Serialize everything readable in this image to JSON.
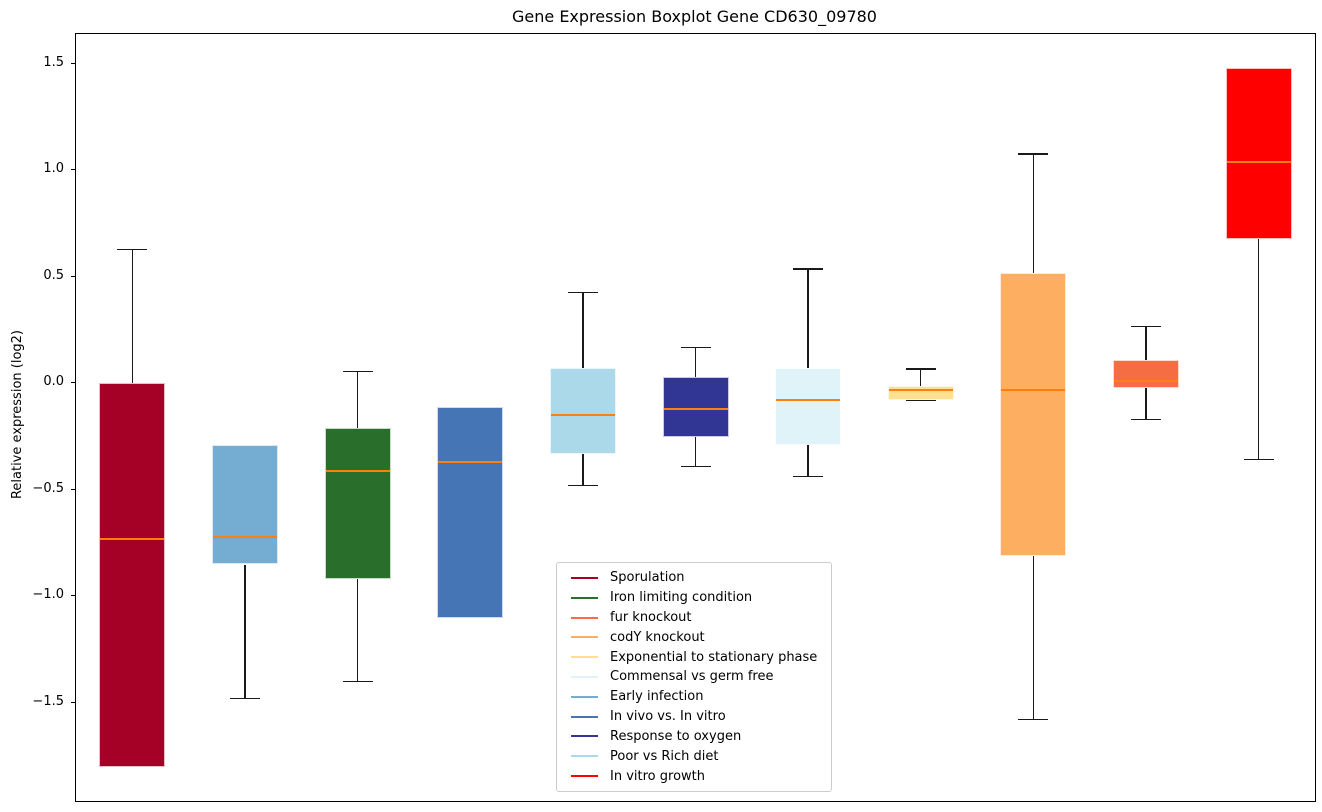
{
  "chart_data": {
    "type": "boxplot",
    "title": "Gene Expression Boxplot Gene CD630_09780",
    "xlabel": "",
    "ylabel": "Relative expression (log2)",
    "ylim": [
      -1.96,
      1.64
    ],
    "yticks": [
      1.5,
      1.0,
      0.5,
      0.0,
      -0.5,
      -1.0,
      -1.5
    ],
    "grid": false,
    "legend_position": "lower-center-right-inside",
    "median_color": "#ff7f0e",
    "whisker_color": "#1a1a1a",
    "series": [
      {
        "name": "Sporulation",
        "color": "#a50026",
        "whislo": -1.8,
        "q1": -1.8,
        "med": -0.73,
        "q3": 0.0,
        "whishi": 0.63
      },
      {
        "name": "Early infection",
        "color": "#74add1",
        "whislo": -1.48,
        "q1": -0.85,
        "med": -0.72,
        "q3": -0.29,
        "whishi": -0.29
      },
      {
        "name": "Iron limiting condition",
        "color": "#2a6e2c",
        "whislo": -1.4,
        "q1": -0.92,
        "med": -0.41,
        "q3": -0.21,
        "whishi": 0.06
      },
      {
        "name": "In vivo vs. In vitro",
        "color": "#4575b4",
        "whislo": -1.1,
        "q1": -1.1,
        "med": -0.37,
        "q3": -0.11,
        "whishi": -0.11
      },
      {
        "name": "Poor vs Rich diet",
        "color": "#abd9e9",
        "whislo": -0.48,
        "q1": -0.33,
        "med": -0.15,
        "q3": 0.07,
        "whishi": 0.43
      },
      {
        "name": "Response to oxygen",
        "color": "#313695",
        "whislo": -0.39,
        "q1": -0.25,
        "med": -0.12,
        "q3": 0.03,
        "whishi": 0.17
      },
      {
        "name": "Commensal vs germ free",
        "color": "#e0f3f8",
        "whislo": -0.44,
        "q1": -0.29,
        "med": -0.08,
        "q3": 0.07,
        "whishi": 0.54
      },
      {
        "name": "Exponential to stationary phase",
        "color": "#fee090",
        "whislo": -0.08,
        "q1": -0.08,
        "med": -0.03,
        "q3": -0.01,
        "whishi": 0.07
      },
      {
        "name": "codY knockout",
        "color": "#fdae61",
        "whislo": -1.58,
        "q1": -0.81,
        "med": -0.03,
        "q3": 0.52,
        "whishi": 1.08
      },
      {
        "name": "fur knockout",
        "color": "#f46d43",
        "whislo": -0.17,
        "q1": -0.02,
        "med": 0.01,
        "q3": 0.11,
        "whishi": 0.27
      },
      {
        "name": "In vitro growth",
        "color": "#ff0000",
        "whislo": -0.36,
        "q1": 0.68,
        "med": 1.04,
        "q3": 1.48,
        "whishi": 1.48
      }
    ],
    "legend_order": [
      "Sporulation",
      "Iron limiting condition",
      "fur knockout",
      "codY knockout",
      "Exponential to stationary phase",
      "Commensal vs germ free",
      "Early infection",
      "In vivo vs. In vitro",
      "Response to oxygen",
      "Poor vs Rich diet",
      "In vitro growth"
    ]
  }
}
